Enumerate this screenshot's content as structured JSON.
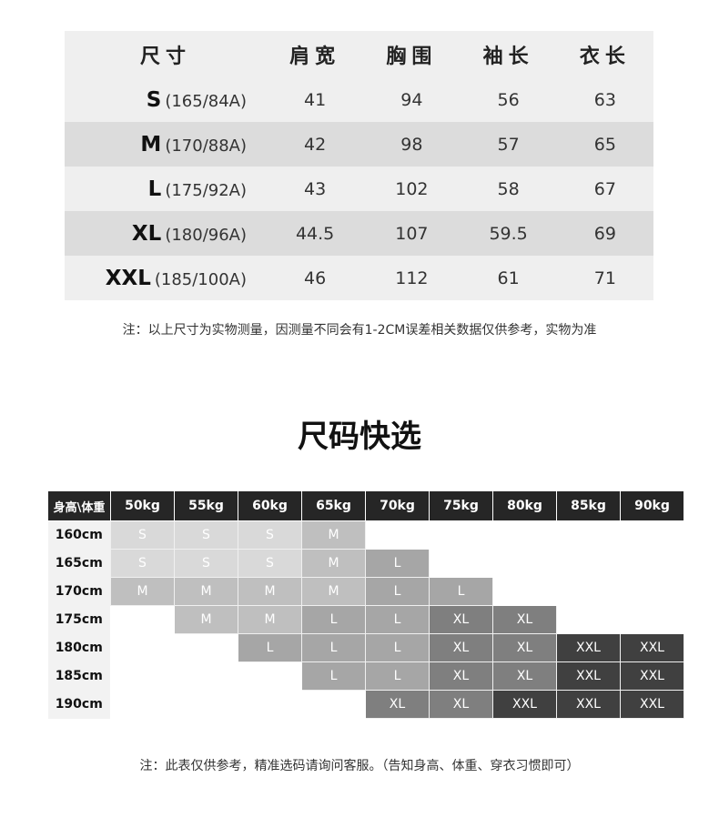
{
  "measure_table": {
    "headers": [
      "尺寸",
      "肩宽",
      "胸围",
      "袖长",
      "衣长"
    ],
    "rows": [
      {
        "size": "S",
        "spec": "(165/84A)",
        "values": [
          "41",
          "94",
          "56",
          "63"
        ]
      },
      {
        "size": "M",
        "spec": "(170/88A)",
        "values": [
          "42",
          "98",
          "57",
          "65"
        ]
      },
      {
        "size": "L",
        "spec": "(175/92A)",
        "values": [
          "43",
          "102",
          "58",
          "67"
        ]
      },
      {
        "size": "XL",
        "spec": "(180/96A)",
        "values": [
          "44.5",
          "107",
          "59.5",
          "69"
        ]
      },
      {
        "size": "XXL",
        "spec": "(185/100A)",
        "values": [
          "46",
          "112",
          "61",
          "71"
        ]
      }
    ],
    "note": "注：以上尺寸为实物测量，因测量不同会有1-2CM误差相关数据仅供参考，实物为准"
  },
  "quick_select": {
    "title": "尺码快选",
    "corner": "身高\\体重",
    "weights": [
      "50kg",
      "55kg",
      "60kg",
      "65kg",
      "70kg",
      "75kg",
      "80kg",
      "85kg",
      "90kg"
    ],
    "heights": [
      "160cm",
      "165cm",
      "170cm",
      "175cm",
      "180cm",
      "185cm",
      "190cm"
    ],
    "grid": [
      [
        "S",
        "S",
        "S",
        "M",
        "",
        "",
        "",
        "",
        ""
      ],
      [
        "S",
        "S",
        "S",
        "M",
        "L",
        "",
        "",
        "",
        ""
      ],
      [
        "M",
        "M",
        "M",
        "M",
        "L",
        "L",
        "",
        "",
        ""
      ],
      [
        "",
        "M",
        "M",
        "L",
        "L",
        "XL",
        "XL",
        "",
        ""
      ],
      [
        "",
        "",
        "L",
        "L",
        "L",
        "XL",
        "XL",
        "XXL",
        "XXL"
      ],
      [
        "",
        "",
        "",
        "L",
        "L",
        "XL",
        "XL",
        "XXL",
        "XXL"
      ],
      [
        "",
        "",
        "",
        "",
        "XL",
        "XL",
        "XXL",
        "XXL",
        "XXL"
      ]
    ],
    "colors": {
      "header": "#262626",
      "S": "#d9d9d9",
      "M": "#bfbfbf",
      "L": "#a6a6a6",
      "XL": "#7f7f7f",
      "XXL": "#404040"
    },
    "note": "注：此表仅供参考，精准选码请询问客服。（告知身高、体重、穿衣习惯即可）"
  }
}
